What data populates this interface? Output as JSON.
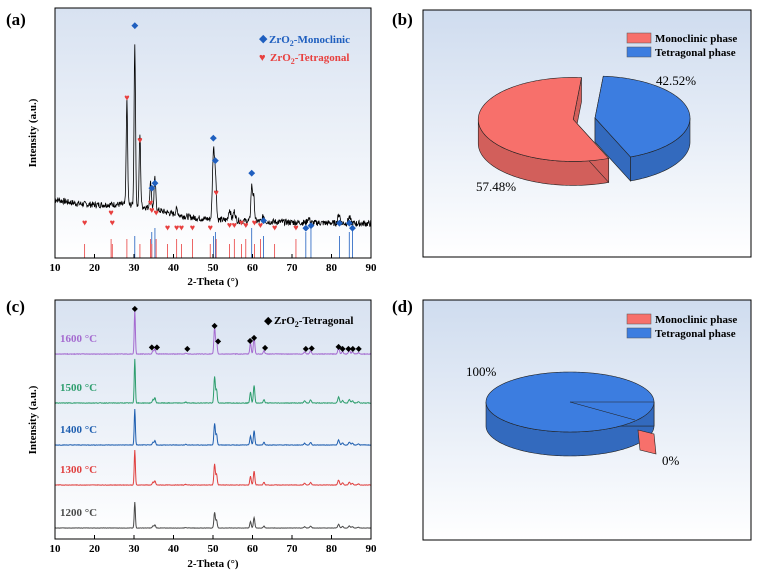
{
  "panels": {
    "a": "(a)",
    "b": "(b)",
    "c": "(c)",
    "d": "(d)"
  },
  "colors": {
    "monoclinic": "#1f5fbf",
    "tetragonal": "#e8403f",
    "blue_phase": "#3c7de0",
    "red_phase": "#f7706b",
    "c_1200": "#4a4a4a",
    "c_1300": "#e0403f",
    "c_1400": "#1f5fb0",
    "c_1500": "#2e9e6e",
    "c_1600": "#a56bd0"
  },
  "chart_data": [
    {
      "id": "a",
      "type": "line",
      "xlabel": "2-Theta (°)",
      "ylabel": "Intensity (a.u.)",
      "xlim": [
        10,
        90
      ],
      "xticks": [
        "10",
        "20",
        "30",
        "40",
        "50",
        "60",
        "70",
        "80",
        "90"
      ],
      "legend": [
        {
          "marker": "◆",
          "label_prefix": "ZrO",
          "label_sub": "2",
          "label_suffix": "-Monoclinic",
          "color": "#1f5fbf"
        },
        {
          "marker": "♥",
          "label_prefix": "ZrO",
          "label_sub": "2",
          "label_suffix": "-Tetragonal",
          "color": "#e8403f"
        }
      ],
      "legend_position": "top-right",
      "peaks": [
        {
          "x": 28.2,
          "y": 0.58,
          "w": 0.25
        },
        {
          "x": 30.2,
          "y": 0.9,
          "w": 0.25
        },
        {
          "x": 31.5,
          "y": 0.4,
          "w": 0.25
        },
        {
          "x": 34.2,
          "y": 0.14,
          "w": 0.3
        },
        {
          "x": 35.3,
          "y": 0.17,
          "w": 0.3
        },
        {
          "x": 40.8,
          "y": 0.03,
          "w": 0.4
        },
        {
          "x": 50.1,
          "y": 0.36,
          "w": 0.35
        },
        {
          "x": 50.6,
          "y": 0.24,
          "w": 0.35
        },
        {
          "x": 54.2,
          "y": 0.06,
          "w": 0.4
        },
        {
          "x": 55.4,
          "y": 0.05,
          "w": 0.4
        },
        {
          "x": 59.8,
          "y": 0.19,
          "w": 0.3
        },
        {
          "x": 60.3,
          "y": 0.13,
          "w": 0.3
        },
        {
          "x": 62.8,
          "y": 0.03,
          "w": 0.4
        },
        {
          "x": 74.2,
          "y": 0.025,
          "w": 0.4
        },
        {
          "x": 81.9,
          "y": 0.05,
          "w": 0.4
        },
        {
          "x": 84.5,
          "y": 0.035,
          "w": 0.4
        }
      ],
      "monoclinic_marks": [
        30.2,
        34.5,
        35.3,
        50.1,
        50.6,
        59.8,
        62.8,
        73.5,
        74.8,
        82.0,
        84.5,
        85.3
      ],
      "monoclinic_heights": [
        0.92,
        0.27,
        0.29,
        0.47,
        0.38,
        0.33,
        0.14,
        0.11,
        0.12,
        0.13,
        0.13,
        0.11
      ],
      "tetragonal_marks": [
        17.5,
        24.2,
        24.5,
        28.2,
        31.5,
        34.2,
        34.5,
        35.6,
        38.5,
        40.8,
        42.0,
        44.8,
        49.3,
        50.8,
        54.2,
        55.4,
        57.2,
        58.3,
        60.5,
        62.0,
        65.6,
        71.0
      ],
      "tetragonal_heights": [
        0.13,
        0.17,
        0.13,
        0.63,
        0.46,
        0.21,
        0.18,
        0.17,
        0.11,
        0.11,
        0.11,
        0.11,
        0.11,
        0.25,
        0.12,
        0.12,
        0.13,
        0.12,
        0.13,
        0.12,
        0.11,
        0.11
      ]
    },
    {
      "id": "b",
      "type": "pie",
      "categories": [
        "Monoclinic phase",
        "Tetragonal phase"
      ],
      "values": [
        57.48,
        42.52
      ],
      "labels": [
        "57.48%",
        "42.52%"
      ],
      "legend_position": "top-right",
      "colors": [
        "#f7706b",
        "#3c7de0"
      ]
    },
    {
      "id": "c",
      "type": "line",
      "xlabel": "2-Theta (°)",
      "ylabel": "Intensity (a.u.)",
      "xlim": [
        10,
        90
      ],
      "xticks": [
        "10",
        "20",
        "30",
        "40",
        "50",
        "60",
        "70",
        "80",
        "90"
      ],
      "legend": [
        {
          "marker": "◆",
          "label_prefix": "ZrO",
          "label_sub": "2",
          "label_suffix": "-Tetragonal",
          "color": "#000000"
        }
      ],
      "legend_position": "top-right",
      "series": [
        {
          "name": "1200 °C",
          "color": "#4a4a4a"
        },
        {
          "name": "1300 °C",
          "color": "#e0403f"
        },
        {
          "name": "1400 °C",
          "color": "#1f5fb0"
        },
        {
          "name": "1500 °C",
          "color": "#2e9e6e"
        },
        {
          "name": "1600 °C",
          "color": "#a56bd0"
        }
      ],
      "peaks": [
        {
          "x": 30.2,
          "y": 1.0,
          "w": 0.2
        },
        {
          "x": 34.8,
          "y": 0.08,
          "w": 0.25
        },
        {
          "x": 35.3,
          "y": 0.12,
          "w": 0.25
        },
        {
          "x": 43.1,
          "y": 0.02,
          "w": 0.3
        },
        {
          "x": 50.4,
          "y": 0.6,
          "w": 0.25
        },
        {
          "x": 50.9,
          "y": 0.3,
          "w": 0.25
        },
        {
          "x": 59.5,
          "y": 0.25,
          "w": 0.25
        },
        {
          "x": 60.4,
          "y": 0.4,
          "w": 0.25
        },
        {
          "x": 62.9,
          "y": 0.08,
          "w": 0.25
        },
        {
          "x": 73.2,
          "y": 0.05,
          "w": 0.3
        },
        {
          "x": 74.7,
          "y": 0.07,
          "w": 0.3
        },
        {
          "x": 81.8,
          "y": 0.14,
          "w": 0.3
        },
        {
          "x": 82.8,
          "y": 0.06,
          "w": 0.3
        },
        {
          "x": 84.5,
          "y": 0.08,
          "w": 0.3
        },
        {
          "x": 85.3,
          "y": 0.05,
          "w": 0.3
        },
        {
          "x": 86.8,
          "y": 0.03,
          "w": 0.3
        }
      ],
      "tetragonal_marks": [
        30.2,
        34.5,
        35.8,
        43.5,
        50.4,
        51.3,
        59.4,
        60.4,
        63.2,
        73.5,
        75.0,
        81.8,
        82.8,
        84.3,
        85.4,
        86.9
      ],
      "tetragonal_heights": [
        1.48,
        0.2,
        0.2,
        0.15,
        0.92,
        0.4,
        0.42,
        0.52,
        0.18,
        0.15,
        0.17,
        0.22,
        0.15,
        0.15,
        0.15,
        0.15
      ]
    },
    {
      "id": "d",
      "type": "pie",
      "categories": [
        "Monoclinic phase",
        "Tetragonal phase"
      ],
      "values": [
        0,
        100
      ],
      "labels": [
        "0%",
        "100%"
      ],
      "legend_position": "top-right",
      "colors": [
        "#f7706b",
        "#3c7de0"
      ]
    }
  ]
}
